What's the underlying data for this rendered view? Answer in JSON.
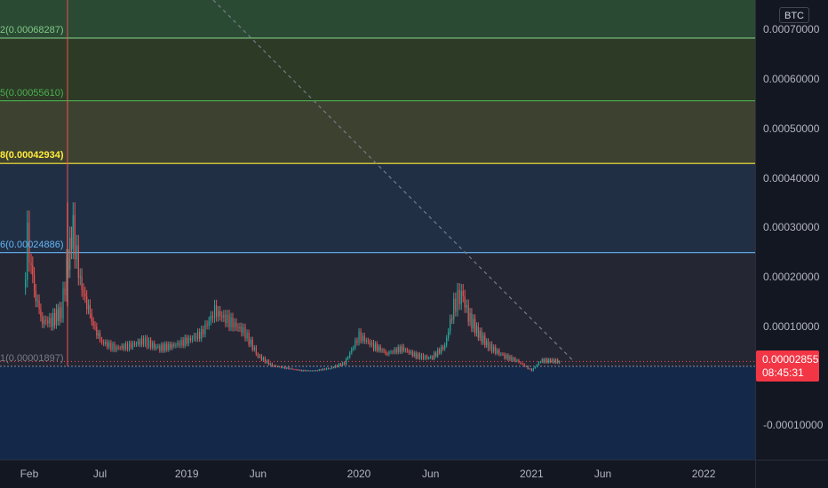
{
  "currency": "BTC",
  "price_axis": {
    "ticks": [
      "0.00070000",
      "0.00060000",
      "0.00050000",
      "0.00040000",
      "0.00030000",
      "0.00020000",
      "0.00010000",
      "-0.00010000"
    ],
    "tick_values": [
      0.0007,
      0.0006,
      0.0005,
      0.0004,
      0.0003,
      0.0002,
      0.0001,
      -0.0001
    ]
  },
  "time_axis": {
    "ticks": [
      "Feb",
      "Jul",
      "2019",
      "Jun",
      "2020",
      "Jun",
      "2021",
      "Jun",
      "2022"
    ],
    "tick_dates": [
      "2018-02-01",
      "2018-07-01",
      "2019-01-01",
      "2019-06-01",
      "2020-01-01",
      "2020-06-01",
      "2021-01-01",
      "2021-06-01",
      "2022-01-01"
    ]
  },
  "current_price": {
    "value": "0.00002855",
    "countdown": "08:45:31",
    "color": "#f23645"
  },
  "fib_levels": [
    {
      "label": "2(0.00068287)",
      "price": 0.00068287,
      "color": "#81c784",
      "fill": "#2a4a34"
    },
    {
      "label": "5(0.00055610)",
      "price": 0.0005561,
      "color": "#4caf50",
      "fill": "#2c3a26"
    },
    {
      "label": "8(0.00042934)",
      "price": 0.00042934,
      "color": "#ffeb3b",
      "fill": "#3d4130"
    },
    {
      "label": "6(0.00024886)",
      "price": 0.00024886,
      "color": "#64b5f6",
      "fill": "#212f44"
    },
    {
      "label": "1(0.00001897)",
      "price": 1.897e-05,
      "color": "#787b86",
      "fill": "#252634"
    }
  ],
  "colors": {
    "up": "#26a69a",
    "down": "#ef5350",
    "background": "#131722",
    "below_zero_fill": "#14294a"
  },
  "chart_data": {
    "type": "candlestick",
    "series": [
      {
        "name": "",
        "x": [
          "2018-01-20",
          "2018-01-28",
          "2018-02-05",
          "2018-02-15",
          "2018-03-01",
          "2018-03-20",
          "2018-04-10",
          "2018-04-25",
          "2018-05-05",
          "2018-05-20",
          "2018-06-10",
          "2018-07-01",
          "2018-08-01",
          "2018-09-01",
          "2018-10-01",
          "2018-11-01",
          "2018-12-01",
          "2019-01-01",
          "2019-02-01",
          "2019-03-01",
          "2019-04-01",
          "2019-05-01",
          "2019-06-01",
          "2019-07-01",
          "2019-08-01",
          "2019-09-01",
          "2019-10-01",
          "2019-11-01",
          "2019-12-01",
          "2020-01-01",
          "2020-02-01",
          "2020-03-01",
          "2020-04-01",
          "2020-05-01",
          "2020-06-01",
          "2020-07-01",
          "2020-07-20",
          "2020-08-05",
          "2020-08-20",
          "2020-09-10",
          "2020-10-01",
          "2020-11-01",
          "2020-12-01",
          "2021-01-01",
          "2021-01-20",
          "2021-02-10",
          "2021-03-01"
        ],
        "y": [
          0.00016,
          0.00028,
          0.00022,
          0.00016,
          0.00011,
          0.00011,
          0.00013,
          0.00024,
          0.00029,
          0.00019,
          0.00012,
          7e-05,
          5.5e-05,
          6e-05,
          7e-05,
          5.5e-05,
          6e-05,
          7e-05,
          8.5e-05,
          0.00013,
          0.00011,
          9e-05,
          4e-05,
          2e-05,
          1.5e-05,
          1e-05,
          1e-05,
          1.5e-05,
          2.5e-05,
          8e-05,
          6e-05,
          4.5e-05,
          5.5e-05,
          4e-05,
          3.5e-05,
          6e-05,
          0.00014,
          0.00017,
          0.00012,
          8.5e-05,
          6e-05,
          4e-05,
          3e-05,
          1e-05,
          3e-05,
          3e-05,
          2.855e-05
        ]
      }
    ],
    "ylim": [
      -0.00017,
      0.00076
    ],
    "xlim": [
      "2017-12-01",
      "2022-04-20"
    ],
    "grid": false
  }
}
